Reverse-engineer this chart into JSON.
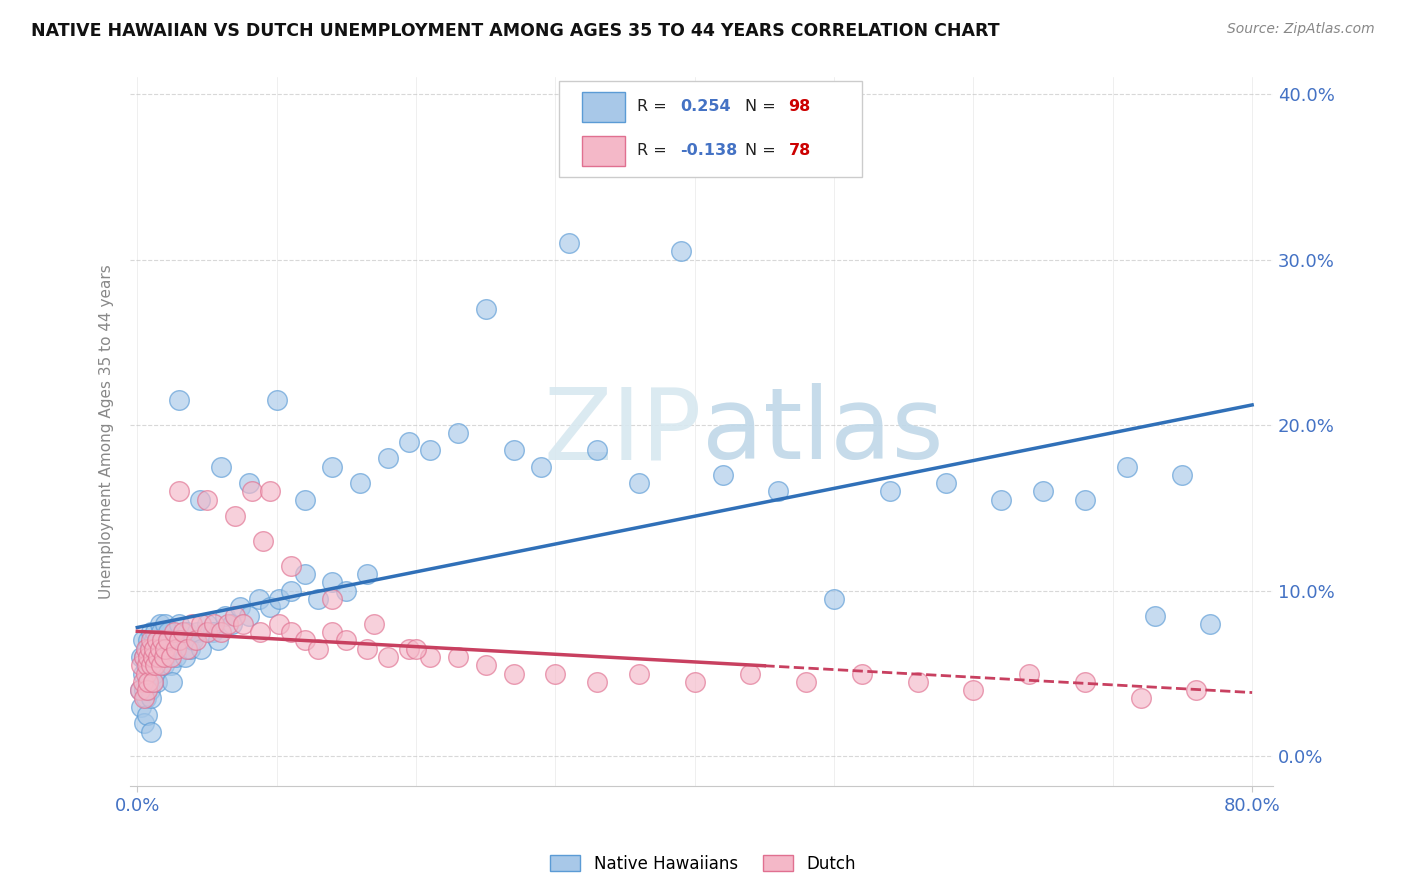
{
  "title": "NATIVE HAWAIIAN VS DUTCH UNEMPLOYMENT AMONG AGES 35 TO 44 YEARS CORRELATION CHART",
  "source": "Source: ZipAtlas.com",
  "ylabel": "Unemployment Among Ages 35 to 44 years",
  "legend_label1": "Native Hawaiians",
  "legend_label2": "Dutch",
  "R1": 0.254,
  "N1": 98,
  "R2": -0.138,
  "N2": 78,
  "watermark_part1": "ZIP",
  "watermark_part2": "atlas",
  "blue_color": "#a8c8e8",
  "blue_edge_color": "#5b9bd5",
  "pink_color": "#f4b8c8",
  "pink_edge_color": "#e07090",
  "blue_line_color": "#3070b8",
  "pink_line_color": "#c84060",
  "background_color": "#ffffff",
  "grid_color": "#c8c8c8",
  "tick_label_color": "#4472c4",
  "r_val_color": "#4472c4",
  "n_val_color": "#cc0000",
  "xlim": [
    0.0,
    0.8
  ],
  "ylim": [
    0.0,
    0.4
  ],
  "xticks": [
    0.0,
    0.8
  ],
  "xtick_labels": [
    "0.0%",
    "80.0%"
  ],
  "yticks": [
    0.0,
    0.1,
    0.2,
    0.3,
    0.4
  ],
  "ytick_labels": [
    "0.0%",
    "10.0%",
    "20.0%",
    "30.0%",
    "40.0%"
  ],
  "nh_x": [
    0.002,
    0.003,
    0.003,
    0.004,
    0.004,
    0.005,
    0.005,
    0.005,
    0.006,
    0.006,
    0.007,
    0.007,
    0.007,
    0.008,
    0.008,
    0.009,
    0.009,
    0.01,
    0.01,
    0.01,
    0.01,
    0.011,
    0.011,
    0.012,
    0.012,
    0.013,
    0.013,
    0.014,
    0.014,
    0.015,
    0.016,
    0.016,
    0.017,
    0.018,
    0.019,
    0.02,
    0.02,
    0.022,
    0.023,
    0.024,
    0.025,
    0.027,
    0.028,
    0.03,
    0.032,
    0.034,
    0.036,
    0.038,
    0.04,
    0.043,
    0.046,
    0.05,
    0.054,
    0.058,
    0.063,
    0.068,
    0.074,
    0.08,
    0.087,
    0.095,
    0.102,
    0.11,
    0.12,
    0.13,
    0.14,
    0.15,
    0.165,
    0.18,
    0.195,
    0.21,
    0.23,
    0.25,
    0.27,
    0.29,
    0.31,
    0.33,
    0.36,
    0.39,
    0.42,
    0.46,
    0.5,
    0.54,
    0.58,
    0.62,
    0.65,
    0.68,
    0.71,
    0.73,
    0.75,
    0.77,
    0.03,
    0.045,
    0.06,
    0.08,
    0.1,
    0.12,
    0.14,
    0.16
  ],
  "nh_y": [
    0.04,
    0.06,
    0.03,
    0.05,
    0.07,
    0.04,
    0.06,
    0.02,
    0.055,
    0.035,
    0.065,
    0.045,
    0.025,
    0.07,
    0.05,
    0.06,
    0.04,
    0.075,
    0.055,
    0.035,
    0.015,
    0.065,
    0.045,
    0.07,
    0.05,
    0.075,
    0.055,
    0.065,
    0.045,
    0.07,
    0.08,
    0.06,
    0.075,
    0.065,
    0.055,
    0.08,
    0.06,
    0.075,
    0.065,
    0.055,
    0.045,
    0.07,
    0.06,
    0.08,
    0.07,
    0.06,
    0.075,
    0.065,
    0.07,
    0.075,
    0.065,
    0.08,
    0.075,
    0.07,
    0.085,
    0.08,
    0.09,
    0.085,
    0.095,
    0.09,
    0.095,
    0.1,
    0.11,
    0.095,
    0.105,
    0.1,
    0.11,
    0.18,
    0.19,
    0.185,
    0.195,
    0.27,
    0.185,
    0.175,
    0.31,
    0.185,
    0.165,
    0.305,
    0.17,
    0.16,
    0.095,
    0.16,
    0.165,
    0.155,
    0.16,
    0.155,
    0.175,
    0.085,
    0.17,
    0.08,
    0.215,
    0.155,
    0.175,
    0.165,
    0.215,
    0.155,
    0.175,
    0.165
  ],
  "du_x": [
    0.002,
    0.003,
    0.004,
    0.005,
    0.005,
    0.006,
    0.006,
    0.007,
    0.007,
    0.008,
    0.008,
    0.009,
    0.01,
    0.01,
    0.011,
    0.011,
    0.012,
    0.013,
    0.014,
    0.015,
    0.016,
    0.017,
    0.018,
    0.019,
    0.02,
    0.022,
    0.024,
    0.026,
    0.028,
    0.03,
    0.033,
    0.036,
    0.039,
    0.042,
    0.046,
    0.05,
    0.055,
    0.06,
    0.065,
    0.07,
    0.076,
    0.082,
    0.088,
    0.095,
    0.102,
    0.11,
    0.12,
    0.13,
    0.14,
    0.15,
    0.165,
    0.18,
    0.195,
    0.21,
    0.23,
    0.25,
    0.27,
    0.3,
    0.33,
    0.36,
    0.4,
    0.44,
    0.48,
    0.52,
    0.56,
    0.6,
    0.64,
    0.68,
    0.72,
    0.76,
    0.03,
    0.05,
    0.07,
    0.09,
    0.11,
    0.14,
    0.17,
    0.2
  ],
  "du_y": [
    0.04,
    0.055,
    0.045,
    0.06,
    0.035,
    0.05,
    0.065,
    0.055,
    0.04,
    0.06,
    0.045,
    0.065,
    0.055,
    0.07,
    0.06,
    0.045,
    0.065,
    0.055,
    0.07,
    0.06,
    0.065,
    0.055,
    0.07,
    0.06,
    0.065,
    0.07,
    0.06,
    0.075,
    0.065,
    0.07,
    0.075,
    0.065,
    0.08,
    0.07,
    0.08,
    0.075,
    0.08,
    0.075,
    0.08,
    0.085,
    0.08,
    0.16,
    0.075,
    0.16,
    0.08,
    0.075,
    0.07,
    0.065,
    0.075,
    0.07,
    0.065,
    0.06,
    0.065,
    0.06,
    0.06,
    0.055,
    0.05,
    0.05,
    0.045,
    0.05,
    0.045,
    0.05,
    0.045,
    0.05,
    0.045,
    0.04,
    0.05,
    0.045,
    0.035,
    0.04,
    0.16,
    0.155,
    0.145,
    0.13,
    0.115,
    0.095,
    0.08,
    0.065
  ]
}
